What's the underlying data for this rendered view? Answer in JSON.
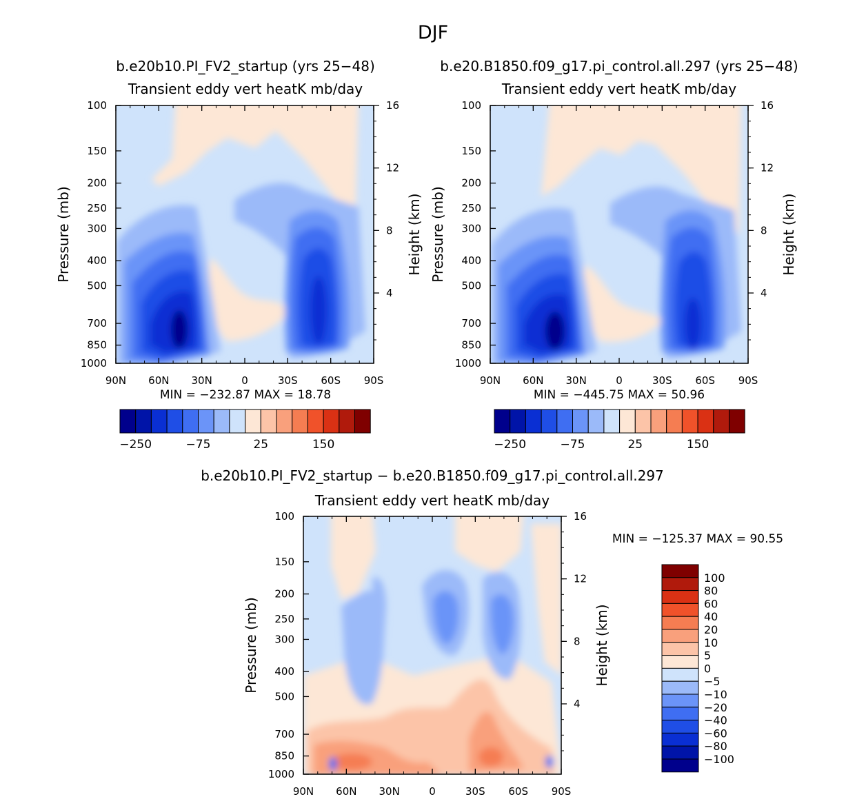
{
  "page": {
    "title": "DJF"
  },
  "colors": {
    "neg": [
      "#00008c",
      "#0014a8",
      "#0a2fd3",
      "#1f4ee6",
      "#3f6ef2",
      "#6b94f8",
      "#9bbaf9",
      "#cfe3fb"
    ],
    "pos": [
      "#fde7d6",
      "#fcc4a8",
      "#f9a07c",
      "#f57d52",
      "#f0522a",
      "#da3114",
      "#b01a0c",
      "#7f0000"
    ]
  },
  "chart_data": [
    {
      "id": "left",
      "type": "contour",
      "case_title": "b.e20b10.PI_FV2_startup (yrs 25−48)",
      "title": "Transient eddy vert heatK mb/day",
      "ylabel": "Pressure (mb)",
      "y2label": "Height (km)",
      "x_ticks": [
        "90N",
        "60N",
        "30N",
        "0",
        "30S",
        "60S",
        "90S"
      ],
      "p_ticks": [
        "100",
        "150",
        "200",
        "250",
        "300",
        "400",
        "500",
        "700",
        "850",
        "1000"
      ],
      "h_ticks": [
        "16",
        "12",
        "8",
        "4"
      ],
      "stats": "MIN =  −232.87   MAX =   18.78",
      "min": -232.87,
      "max": 18.78,
      "colorbar_labels": [
        "−250",
        "−75",
        "25",
        "150"
      ]
    },
    {
      "id": "right",
      "type": "contour",
      "case_title": "b.e20.B1850.f09_g17.pi_control.all.297 (yrs 25−48)",
      "title": "Transient eddy vert heatK mb/day",
      "ylabel": "Pressure (mb)",
      "y2label": "Height (km)",
      "x_ticks": [
        "90N",
        "60N",
        "30N",
        "0",
        "30S",
        "60S",
        "90S"
      ],
      "p_ticks": [
        "100",
        "150",
        "200",
        "250",
        "300",
        "400",
        "500",
        "700",
        "850",
        "1000"
      ],
      "h_ticks": [
        "16",
        "12",
        "8",
        "4"
      ],
      "stats": "MIN =  −445.75   MAX =   50.96",
      "min": -445.75,
      "max": 50.96,
      "colorbar_labels": [
        "−250",
        "−75",
        "25",
        "150"
      ]
    },
    {
      "id": "diff",
      "type": "contour",
      "case_title": "b.e20b10.PI_FV2_startup − b.e20.B1850.f09_g17.pi_control.all.297",
      "title": "Transient eddy vert heatK mb/day",
      "ylabel": "Pressure (mb)",
      "y2label": "Height (km)",
      "x_ticks": [
        "90N",
        "60N",
        "30N",
        "0",
        "30S",
        "60S",
        "90S"
      ],
      "p_ticks": [
        "100",
        "150",
        "200",
        "250",
        "300",
        "400",
        "500",
        "700",
        "850",
        "1000"
      ],
      "h_ticks": [
        "16",
        "12",
        "8",
        "4"
      ],
      "stats": "MIN = −125.37   MAX =   90.55",
      "min": -125.37,
      "max": 90.55,
      "colorbar_levels": [
        "100",
        "80",
        "60",
        "40",
        "20",
        "10",
        "5",
        "0",
        "−5",
        "−10",
        "−20",
        "−40",
        "−60",
        "−80",
        "−100"
      ]
    }
  ]
}
